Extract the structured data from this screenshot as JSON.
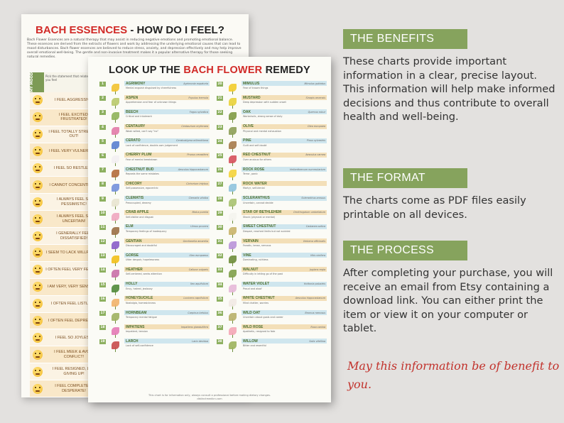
{
  "back_sheet": {
    "title_part1": "BACH ESSENCES",
    "title_part2": " - HOW DO I FEEL?",
    "intro": "Bach Flower Essences are a natural therapy that may assist in reducing negative emotions and promoting emotional balance. These essences are derived from the extracts of flowers and work by addressing the underlying emotional causes that can lead to mood disturbances. Bach flower essences are believed to reduce stress, anxiety, and depression effectively and may help improve overall emotional well-being. The gentle and non-invasive treatment makes it a popular alternative therapy for those seeking natural remedies.",
    "mood_header": "MY MOOD",
    "mood_subheader": "Pick the statement that relates to how you feel",
    "moods": [
      "I FEEL AGGRESSIVE!",
      "I FEEL EXCITED, FRUSTRATED!",
      "I FEEL TOTALLY STRESSED OUT!",
      "I FEEL VERY VULNERABLE!",
      "I FEEL SO RESTLESS!",
      "I CANNOT CONCENTRATE!",
      "I ALWAYS FEEL SO PESSIMISTIC!",
      "I ALWAYS FEEL SO UNCERTAIN!",
      "I GENERALLY FEEL DISSATISFIED!",
      "I SEEM TO LACK WILLPOWER!",
      "I OFTEN FEEL VERY FEARFUL!",
      "I AM VERY, VERY SENSITIVE!",
      "I OFTEN FEEL LISTLESS!",
      "I OFTEN FEEL DEPRESSED!",
      "I FEEL SO JOYLESS!",
      "I FEEL MEEK & AVOID CONFLICT!",
      "I FEEL RESIGNED, LIKE GIVING UP!",
      "I FEEL COMPLETELY DESPERATE!"
    ]
  },
  "front_sheet": {
    "title_part1": "LOOK UP THE ",
    "title_part2": "BACH FLOWER",
    "title_part3": " REMEDY",
    "left_entries": [
      {
        "num": "1",
        "name": "AGRIMONY",
        "latin": "Agrimonia eupatoria",
        "desc": "Mental anguish disguised by cheerfulness",
        "color": "#f2c230"
      },
      {
        "num": "2",
        "name": "ASPEN",
        "latin": "Populus tremula",
        "desc": "Apprehension and fear of unknown things",
        "color": "#b9c96a"
      },
      {
        "num": "3",
        "name": "BEECH",
        "latin": "Fagus sylvatica",
        "desc": "Critical and intolerant",
        "color": "#8fb35a"
      },
      {
        "num": "4",
        "name": "CENTAURY",
        "latin": "Centaurium erythraea",
        "desc": "Weak willed, can't say \"no\"",
        "color": "#e27aa8"
      },
      {
        "num": "5",
        "name": "CERATO",
        "latin": "Ceratostigma willmottiana",
        "desc": "Lack of confidence, doubts own judgement",
        "color": "#5a7fd0"
      },
      {
        "num": "6",
        "name": "CHERRY PLUM",
        "latin": "Prunus cerasifera",
        "desc": "Fear of mental breakdown",
        "color": "#f3f0f3"
      },
      {
        "num": "7",
        "name": "CHESTNUT BUD",
        "latin": "Aesculus hippocastanum",
        "desc": "Repeats the same mistakes",
        "color": "#b36b3a"
      },
      {
        "num": "8",
        "name": "CHICORY",
        "latin": "Cichorium intybus",
        "desc": "Self-possessive, egocentric",
        "color": "#7390dc"
      },
      {
        "num": "9",
        "name": "CLEMATIS",
        "latin": "Clematis vitalba",
        "desc": "Preoccupied, dreamy",
        "color": "#e8e4d0"
      },
      {
        "num": "10",
        "name": "CRAB APPLE",
        "latin": "Malus pumila",
        "desc": "Self-dislike and disgust",
        "color": "#f0a7c0"
      },
      {
        "num": "11",
        "name": "ELM",
        "latin": "Ulmus procera",
        "desc": "Temporary feelings of inadequacy",
        "color": "#9b6f45"
      },
      {
        "num": "12",
        "name": "GENTIAN",
        "latin": "Gentianella amarella",
        "desc": "Discouraged and doubtful",
        "color": "#8a5cc9"
      },
      {
        "num": "13",
        "name": "GORSE",
        "latin": "Ulex europaeus",
        "desc": "Utter despair, hopelessness",
        "color": "#f2c019"
      },
      {
        "num": "14",
        "name": "HEATHER",
        "latin": "Calluna vulgaris",
        "desc": "Self-centered, seeks attention",
        "color": "#c96fa8"
      },
      {
        "num": "15",
        "name": "HOLLY",
        "latin": "Ilex aquifolium",
        "desc": "Envy, hatred, jealousy",
        "color": "#4f8a3a"
      },
      {
        "num": "16",
        "name": "HONEYSUCKLE",
        "latin": "Lonicera caprifolium",
        "desc": "Nostalgia, homesickness",
        "color": "#f1b26a"
      },
      {
        "num": "17",
        "name": "HORNBEAM",
        "latin": "Carpinus betulus",
        "desc": "Temporary mental fatigue",
        "color": "#9fb160"
      },
      {
        "num": "18",
        "name": "IMPATIENS",
        "latin": "Impatiens glandulifera",
        "desc": "Impatient, tension",
        "color": "#e47ab6"
      },
      {
        "num": "19",
        "name": "LARCH",
        "latin": "Larix decidua",
        "desc": "Lack of self-confidence",
        "color": "#c84b4b"
      }
    ],
    "right_entries": [
      {
        "num": "20",
        "name": "MIMULUS",
        "latin": "Mimulus guttatus",
        "desc": "Fear of known things",
        "color": "#f2cc2b"
      },
      {
        "num": "21",
        "name": "MUSTARD",
        "latin": "Sinapis arvensis",
        "desc": "Deep depression with sudden onset",
        "color": "#e9d13a"
      },
      {
        "num": "22",
        "name": "OAK",
        "latin": "Quercus robur",
        "desc": "Workaholic, strong sense of duty",
        "color": "#7f9a44"
      },
      {
        "num": "23",
        "name": "OLIVE",
        "latin": "Olea europaea",
        "desc": "Physical and mental exhaustion",
        "color": "#8d9e57"
      },
      {
        "num": "24",
        "name": "PINE",
        "latin": "Pinus sylvestris",
        "desc": "Guilt and self-doubt",
        "color": "#a67a4a"
      },
      {
        "num": "25",
        "name": "RED CHESTNUT",
        "latin": "Aesculus carnea",
        "desc": "Over anxious for others",
        "color": "#d6505b"
      },
      {
        "num": "26",
        "name": "ROCK ROSE",
        "latin": "Helianthemum nummularium",
        "desc": "Terror, panic",
        "color": "#f4d33a"
      },
      {
        "num": "27",
        "name": "ROCK WATER",
        "latin": "",
        "desc": "Martyr, self-denial",
        "color": "#8fc3de"
      },
      {
        "num": "28",
        "name": "SCLERANTHUS",
        "latin": "Scleranthus annuus",
        "desc": "Uncertain, cannot decide",
        "color": "#a8c270"
      },
      {
        "num": "29",
        "name": "STAR OF BETHLEHEM",
        "latin": "Ornithogalum umbellatum",
        "desc": "Shock (physical or mental)",
        "color": "#f4f4ee"
      },
      {
        "num": "30",
        "name": "SWEET CHESTNUT",
        "latin": "Castanea sativa",
        "desc": "Despair, reached limits but not suicidal",
        "color": "#c9b46a"
      },
      {
        "num": "31",
        "name": "VERVAIN",
        "latin": "Verbena officinalis",
        "desc": "Fanatic, tense, nervous",
        "color": "#b993d9"
      },
      {
        "num": "32",
        "name": "VINE",
        "latin": "Vitis vinifera",
        "desc": "Dominating, ruthless",
        "color": "#6e8d3a"
      },
      {
        "num": "33",
        "name": "WALNUT",
        "latin": "Juglans regia",
        "desc": "Difficulty in letting go of the past",
        "color": "#7fa04a"
      },
      {
        "num": "34",
        "name": "WATER VIOLET",
        "latin": "Hottonia palustris",
        "desc": "Proud and aloof",
        "color": "#e6b8d8"
      },
      {
        "num": "35",
        "name": "WHITE CHESTNUT",
        "latin": "Aesculus hippocastanum",
        "desc": "Mind chatter, worries",
        "color": "#f1e9e4"
      },
      {
        "num": "36",
        "name": "WILD OAT",
        "latin": "Bromus ramosus",
        "desc": "Uncertain about goals and career",
        "color": "#b8b06a"
      },
      {
        "num": "37",
        "name": "WILD ROSE",
        "latin": "Rosa canina",
        "desc": "Apathetic, resigned to fate",
        "color": "#f4a6b6"
      },
      {
        "num": "38",
        "name": "WILLOW",
        "latin": "Salix vitellina",
        "desc": "Bitter and resentful",
        "color": "#9cb35c"
      }
    ],
    "footer_note": "This chart is for information only, always consult a professional before making dietary changes.",
    "footer_site": "distinctmedicn.com"
  },
  "sections": [
    {
      "header": "THE BENEFITS",
      "body": "These charts provide important information in a clear, precise layout.\nThis information will help make informed decisions and thus contribute to overall health and well-being."
    },
    {
      "header": "THE FORMAT",
      "body": "The charts come as PDF files easily printable on all devices."
    },
    {
      "header": "THE PROCESS",
      "body": "After completing your purchase, you will receive an email from Etsy containing a download link. You can either print the item or view it on your computer or tablet."
    }
  ],
  "closing": "May this information be of benefit to you.",
  "colors": {
    "accent": "#86a35d",
    "highlight_red": "#d12a27",
    "closing_red": "#c2322c"
  }
}
